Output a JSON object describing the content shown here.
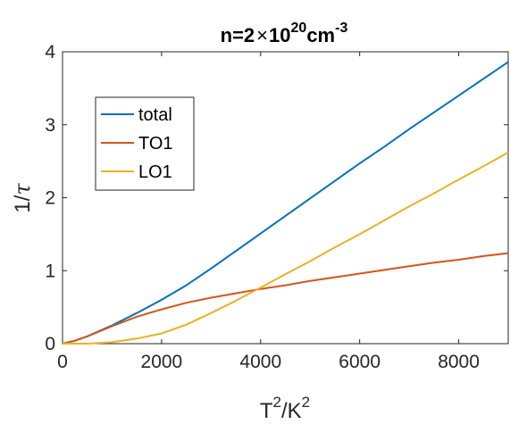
{
  "chart_data": {
    "type": "line",
    "title": {
      "prefix": "n=2",
      "times": "×",
      "base": "10",
      "exponent": "20",
      "unit": "cm",
      "unit_exponent": "-3"
    },
    "xlabel": {
      "base_1": "T",
      "sup_1": "2",
      "sep": "/K",
      "sup_2": "2"
    },
    "ylabel": {
      "text": "1/",
      "symbol": "τ"
    },
    "xlim": [
      0,
      9000
    ],
    "ylim": [
      0,
      4
    ],
    "xticks": [
      0,
      2000,
      4000,
      6000,
      8000
    ],
    "xtick_labels": [
      "0",
      "2000",
      "4000",
      "6000",
      "8000"
    ],
    "yticks": [
      0,
      1,
      2,
      3,
      4
    ],
    "ytick_labels": [
      "0",
      "1",
      "2",
      "3",
      "4"
    ],
    "grid": false,
    "legend_position": "upper-left",
    "x": [
      0,
      250,
      500,
      1000,
      1500,
      2000,
      2500,
      3000,
      3500,
      4000,
      4500,
      5000,
      5500,
      6000,
      6500,
      7000,
      7500,
      8000,
      8500,
      9000
    ],
    "series": [
      {
        "name": "total",
        "color": "#0072BD",
        "values": [
          0,
          0.04,
          0.1,
          0.25,
          0.42,
          0.6,
          0.8,
          1.03,
          1.27,
          1.51,
          1.75,
          1.99,
          2.23,
          2.47,
          2.7,
          2.94,
          3.17,
          3.4,
          3.63,
          3.86
        ]
      },
      {
        "name": "TO1",
        "color": "#D95319",
        "values": [
          0,
          0.04,
          0.1,
          0.24,
          0.37,
          0.47,
          0.56,
          0.63,
          0.69,
          0.75,
          0.8,
          0.86,
          0.91,
          0.96,
          1.01,
          1.06,
          1.11,
          1.15,
          1.2,
          1.24
        ]
      },
      {
        "name": "LO1",
        "color": "#EDB120",
        "values": [
          0,
          0,
          0,
          0.02,
          0.07,
          0.14,
          0.26,
          0.42,
          0.59,
          0.77,
          0.95,
          1.13,
          1.32,
          1.5,
          1.69,
          1.88,
          2.06,
          2.25,
          2.43,
          2.62
        ]
      }
    ]
  }
}
